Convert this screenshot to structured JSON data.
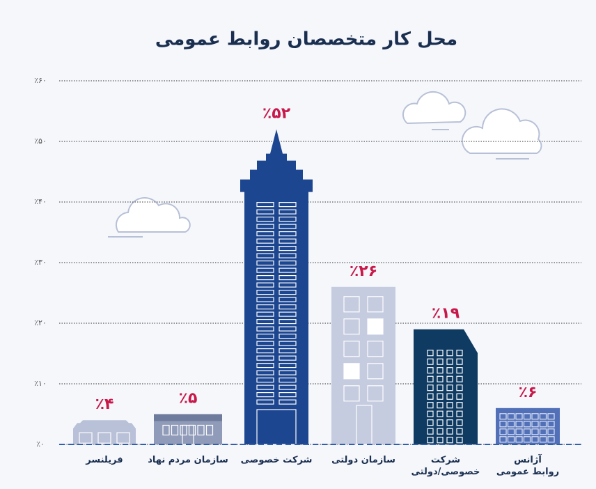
{
  "chart_data": {
    "type": "bar",
    "title": "محل کار متخصصان روابط عمومی",
    "categories": [
      "فریلنسر",
      "سازمان مردم نهاد",
      "شرکت خصوصی",
      "سازمان دولتی",
      "شرکت\nخصوصی/دولتی",
      "آژانس\nروابط عمومی"
    ],
    "values": [
      4,
      5,
      52,
      26,
      19,
      6
    ],
    "value_labels": [
      "٪۴",
      "٪۵",
      "٪۵۲",
      "٪۲۶",
      "٪۱۹",
      "٪۶"
    ],
    "colors": [
      "#b9c1d8",
      "#8f9bb9",
      "#1d4690",
      "#c5cce0",
      "#0f3a62",
      "#5170b8"
    ],
    "label_color": "#c8184a",
    "ylim": [
      0,
      60
    ],
    "yticks": [
      {
        "value": 0,
        "label": "٪۰"
      },
      {
        "value": 10,
        "label": "٪۱۰"
      },
      {
        "value": 20,
        "label": "٪۲۰"
      },
      {
        "value": 30,
        "label": "٪۳۰"
      },
      {
        "value": 40,
        "label": "٪۴۰"
      },
      {
        "value": 50,
        "label": "٪۵۰"
      },
      {
        "value": 60,
        "label": "٪۶۰"
      }
    ],
    "grid": true
  }
}
